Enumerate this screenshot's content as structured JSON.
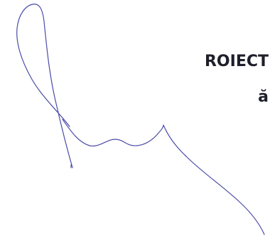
{
  "document": {
    "heading_line_1": "ROIECT",
    "heading_line_2": "ă"
  },
  "signature": {
    "ink_color": "#4a4aa8"
  }
}
